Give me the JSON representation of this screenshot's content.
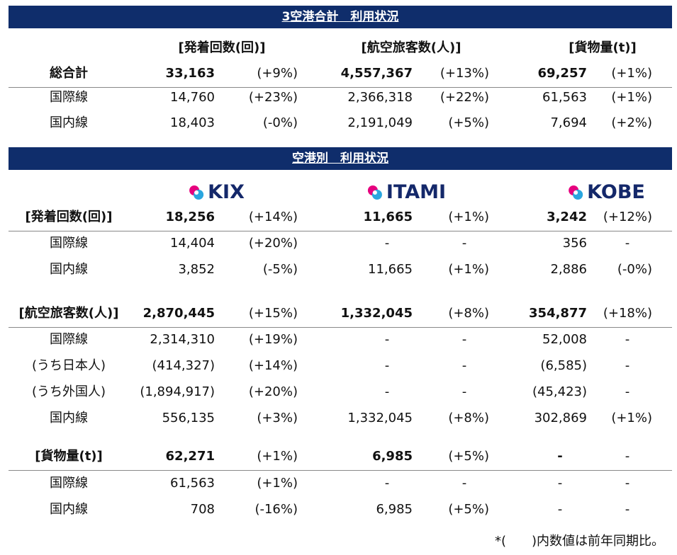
{
  "section1": {
    "title": "3空港合計　利用状況",
    "headers": [
      "[発着回数(回)]",
      "[航空旅客数(人)]",
      "[貨物量(t)]"
    ],
    "rows": [
      [
        "総合計",
        "33,163",
        "(+9%)",
        "4,557,367",
        "(+13%)",
        "69,257",
        "(+1%)"
      ],
      [
        "国際線",
        "14,760",
        "(+23%)",
        "2,366,318",
        "(+22%)",
        "61,563",
        "(+1%)"
      ],
      [
        "国内線",
        "18,403",
        "(-0%)",
        "2,191,049",
        "(+5%)",
        "7,694",
        "(+2%)"
      ]
    ]
  },
  "section2": {
    "title": "空港別　利用状況",
    "airports": [
      "KIX",
      "ITAMI",
      "KOBE"
    ],
    "groups": [
      {
        "rows": [
          [
            "[発着回数(回)]",
            "18,256",
            "(+14%)",
            "11,665",
            "(+1%)",
            "3,242",
            "(+12%)"
          ],
          [
            "国際線",
            "14,404",
            "(+20%)",
            "-",
            "-",
            "356",
            "-"
          ],
          [
            "国内線",
            "3,852",
            "(-5%)",
            "11,665",
            "(+1%)",
            "2,886",
            "(-0%)"
          ]
        ]
      },
      {
        "rows": [
          [
            "[航空旅客数(人)]",
            "2,870,445",
            "(+15%)",
            "1,332,045",
            "(+8%)",
            "354,877",
            "(+18%)"
          ],
          [
            "国際線",
            "2,314,310",
            "(+19%)",
            "-",
            "-",
            "52,008",
            "-"
          ],
          [
            "(うち日本人)",
            "(414,327)",
            "(+14%)",
            "-",
            "-",
            "(6,585)",
            "-"
          ],
          [
            "(うち外国人)",
            "(1,894,917)",
            "(+20%)",
            "-",
            "-",
            "(45,423)",
            "-"
          ],
          [
            "国内線",
            "556,135",
            "(+3%)",
            "1,332,045",
            "(+8%)",
            "302,869",
            "(+1%)"
          ]
        ]
      },
      {
        "rows": [
          [
            "[貨物量(t)]",
            "62,271",
            "(+1%)",
            "6,985",
            "(+5%)",
            "-",
            "-"
          ],
          [
            "国際線",
            "61,563",
            "(+1%)",
            "-",
            "-",
            "-",
            "-"
          ],
          [
            "国内線",
            "708",
            "(-16%)",
            "6,985",
            "(+5%)",
            "-",
            "-"
          ]
        ]
      }
    ]
  },
  "footnote": "*(　　)内数値は前年同期比。"
}
